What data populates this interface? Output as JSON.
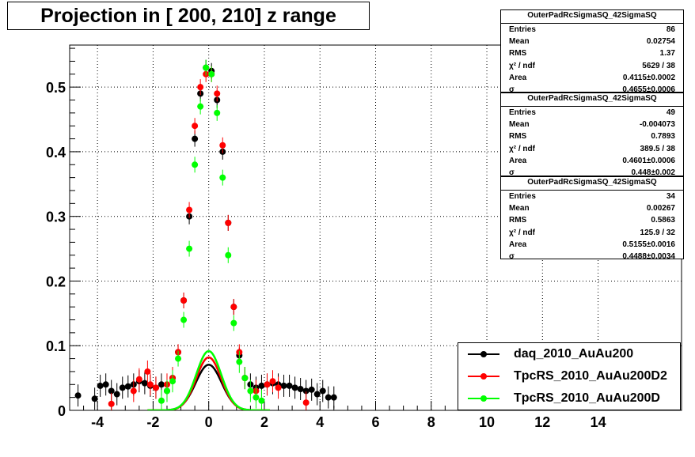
{
  "title": "Projection in [ 200, 210] z range",
  "chart_data": {
    "type": "scatter",
    "title": "Projection in [ 200, 210] z range",
    "xlabel": "",
    "ylabel": "",
    "xlim": [
      -5,
      17
    ],
    "ylim": [
      0,
      0.565
    ],
    "grid": true,
    "x_tick_labels": [
      "-4",
      "-2",
      "0",
      "2",
      "4",
      "6",
      "8",
      "10",
      "12",
      "14"
    ],
    "y_tick_labels": [
      "0",
      "0.1",
      "0.2",
      "0.3",
      "0.4",
      "0.5"
    ],
    "legend_position": "bottom-right",
    "series": [
      {
        "name": "daq_2010_AuAu200",
        "color": "#000000",
        "fit_sigma": 0.4655,
        "fit_area": 0.4115,
        "points": [
          {
            "x": -4.7,
            "y": 0.023
          },
          {
            "x": -4.1,
            "y": 0.018
          },
          {
            "x": -3.9,
            "y": 0.038
          },
          {
            "x": -3.7,
            "y": 0.04
          },
          {
            "x": -3.5,
            "y": 0.03
          },
          {
            "x": -3.3,
            "y": 0.025
          },
          {
            "x": -3.1,
            "y": 0.035
          },
          {
            "x": -2.9,
            "y": 0.037
          },
          {
            "x": -2.7,
            "y": 0.04
          },
          {
            "x": -2.5,
            "y": 0.045
          },
          {
            "x": -2.3,
            "y": 0.042
          },
          {
            "x": -2.1,
            "y": 0.038
          },
          {
            "x": -1.9,
            "y": 0.035
          },
          {
            "x": -1.7,
            "y": 0.04
          },
          {
            "x": -1.5,
            "y": 0.03
          },
          {
            "x": -1.3,
            "y": 0.05
          },
          {
            "x": -1.1,
            "y": 0.09
          },
          {
            "x": -0.9,
            "y": 0.17
          },
          {
            "x": -0.7,
            "y": 0.3
          },
          {
            "x": -0.5,
            "y": 0.42
          },
          {
            "x": -0.3,
            "y": 0.49
          },
          {
            "x": -0.1,
            "y": 0.53
          },
          {
            "x": 0.1,
            "y": 0.525
          },
          {
            "x": 0.3,
            "y": 0.48
          },
          {
            "x": 0.5,
            "y": 0.4
          },
          {
            "x": 0.7,
            "y": 0.29
          },
          {
            "x": 0.9,
            "y": 0.16
          },
          {
            "x": 1.1,
            "y": 0.085
          },
          {
            "x": 1.3,
            "y": 0.05
          },
          {
            "x": 1.5,
            "y": 0.04
          },
          {
            "x": 1.7,
            "y": 0.035
          },
          {
            "x": 1.9,
            "y": 0.038
          },
          {
            "x": 2.1,
            "y": 0.04
          },
          {
            "x": 2.3,
            "y": 0.042
          },
          {
            "x": 2.5,
            "y": 0.04
          },
          {
            "x": 2.7,
            "y": 0.038
          },
          {
            "x": 2.9,
            "y": 0.038
          },
          {
            "x": 3.1,
            "y": 0.035
          },
          {
            "x": 3.3,
            "y": 0.033
          },
          {
            "x": 3.5,
            "y": 0.03
          },
          {
            "x": 3.7,
            "y": 0.032
          },
          {
            "x": 3.9,
            "y": 0.025
          },
          {
            "x": 4.1,
            "y": 0.03
          },
          {
            "x": 4.3,
            "y": 0.02
          },
          {
            "x": 4.5,
            "y": 0.02
          }
        ]
      },
      {
        "name": "TpcRS_2010_AuAu200D2",
        "color": "#ff0000",
        "fit_sigma": 0.448,
        "fit_area": 0.4601,
        "points": [
          {
            "x": -3.5,
            "y": 0.01
          },
          {
            "x": -2.7,
            "y": 0.03
          },
          {
            "x": -2.5,
            "y": 0.048
          },
          {
            "x": -2.2,
            "y": 0.06
          },
          {
            "x": -2.1,
            "y": 0.04
          },
          {
            "x": -1.9,
            "y": 0.035
          },
          {
            "x": -1.5,
            "y": 0.04
          },
          {
            "x": -1.3,
            "y": 0.05
          },
          {
            "x": -1.1,
            "y": 0.09
          },
          {
            "x": -0.9,
            "y": 0.17
          },
          {
            "x": -0.7,
            "y": 0.31
          },
          {
            "x": -0.5,
            "y": 0.44
          },
          {
            "x": -0.3,
            "y": 0.5
          },
          {
            "x": -0.1,
            "y": 0.52
          },
          {
            "x": 0.1,
            "y": 0.52
          },
          {
            "x": 0.3,
            "y": 0.49
          },
          {
            "x": 0.5,
            "y": 0.41
          },
          {
            "x": 0.7,
            "y": 0.29
          },
          {
            "x": 0.9,
            "y": 0.16
          },
          {
            "x": 1.1,
            "y": 0.09
          },
          {
            "x": 1.3,
            "y": 0.05
          },
          {
            "x": 1.7,
            "y": 0.03
          },
          {
            "x": 2.1,
            "y": 0.04
          },
          {
            "x": 2.3,
            "y": 0.045
          },
          {
            "x": 2.5,
            "y": 0.035
          },
          {
            "x": 3.5,
            "y": 0.012
          }
        ]
      },
      {
        "name": "TpcRS_2010_AuAu200D",
        "color": "#00ff00",
        "fit_sigma": 0.4488,
        "fit_area": 0.5155,
        "points": [
          {
            "x": -1.7,
            "y": 0.015
          },
          {
            "x": -1.5,
            "y": 0.03
          },
          {
            "x": -1.3,
            "y": 0.045
          },
          {
            "x": -1.1,
            "y": 0.08
          },
          {
            "x": -0.9,
            "y": 0.14
          },
          {
            "x": -0.7,
            "y": 0.25
          },
          {
            "x": -0.5,
            "y": 0.38
          },
          {
            "x": -0.3,
            "y": 0.47
          },
          {
            "x": -0.1,
            "y": 0.53
          },
          {
            "x": 0.1,
            "y": 0.52
          },
          {
            "x": 0.3,
            "y": 0.46
          },
          {
            "x": 0.5,
            "y": 0.36
          },
          {
            "x": 0.7,
            "y": 0.24
          },
          {
            "x": 0.9,
            "y": 0.135
          },
          {
            "x": 1.1,
            "y": 0.075
          },
          {
            "x": 1.3,
            "y": 0.05
          },
          {
            "x": 1.5,
            "y": 0.03
          },
          {
            "x": 1.7,
            "y": 0.02
          },
          {
            "x": 1.9,
            "y": 0.015
          }
        ]
      }
    ]
  },
  "stats_boxes": [
    {
      "title": "OuterPadRcSigmaSQ_42SigmaSQ",
      "rows": [
        {
          "label": "Entries",
          "value": "86"
        },
        {
          "label": "Mean",
          "value": "0.02754"
        },
        {
          "label": "RMS",
          "value": "1.37"
        },
        {
          "label": "χ² / ndf",
          "value": "5629 / 38"
        },
        {
          "label": "Area",
          "value": "0.4115±0.0002"
        },
        {
          "label": "σ",
          "value": "0.4655±0.0006"
        }
      ]
    },
    {
      "title": "OuterPadRcSigmaSQ_42SigmaSQ",
      "rows": [
        {
          "label": "Entries",
          "value": "49"
        },
        {
          "label": "Mean",
          "value": "-0.004073"
        },
        {
          "label": "RMS",
          "value": "0.7893"
        },
        {
          "label": "χ² / ndf",
          "value": "389.5 / 38"
        },
        {
          "label": "Area",
          "value": "0.4601±0.0006"
        },
        {
          "label": "σ",
          "value": "0.448±0.002"
        }
      ]
    },
    {
      "title": "OuterPadRcSigmaSQ_42SigmaSQ",
      "rows": [
        {
          "label": "Entries",
          "value": "34"
        },
        {
          "label": "Mean",
          "value": "0.00267"
        },
        {
          "label": "RMS",
          "value": "0.5863"
        },
        {
          "label": "χ² / ndf",
          "value": "125.9 / 32"
        },
        {
          "label": "Area",
          "value": "0.5155±0.0016"
        },
        {
          "label": "σ",
          "value": "0.4488±0.0034"
        }
      ]
    }
  ],
  "legend": {
    "entries": [
      {
        "label": "daq_2010_AuAu200",
        "color": "#000000"
      },
      {
        "label": "TpcRS_2010_AuAu200D2",
        "color": "#ff0000"
      },
      {
        "label": "TpcRS_2010_AuAu200D",
        "color": "#00ff00"
      }
    ]
  }
}
